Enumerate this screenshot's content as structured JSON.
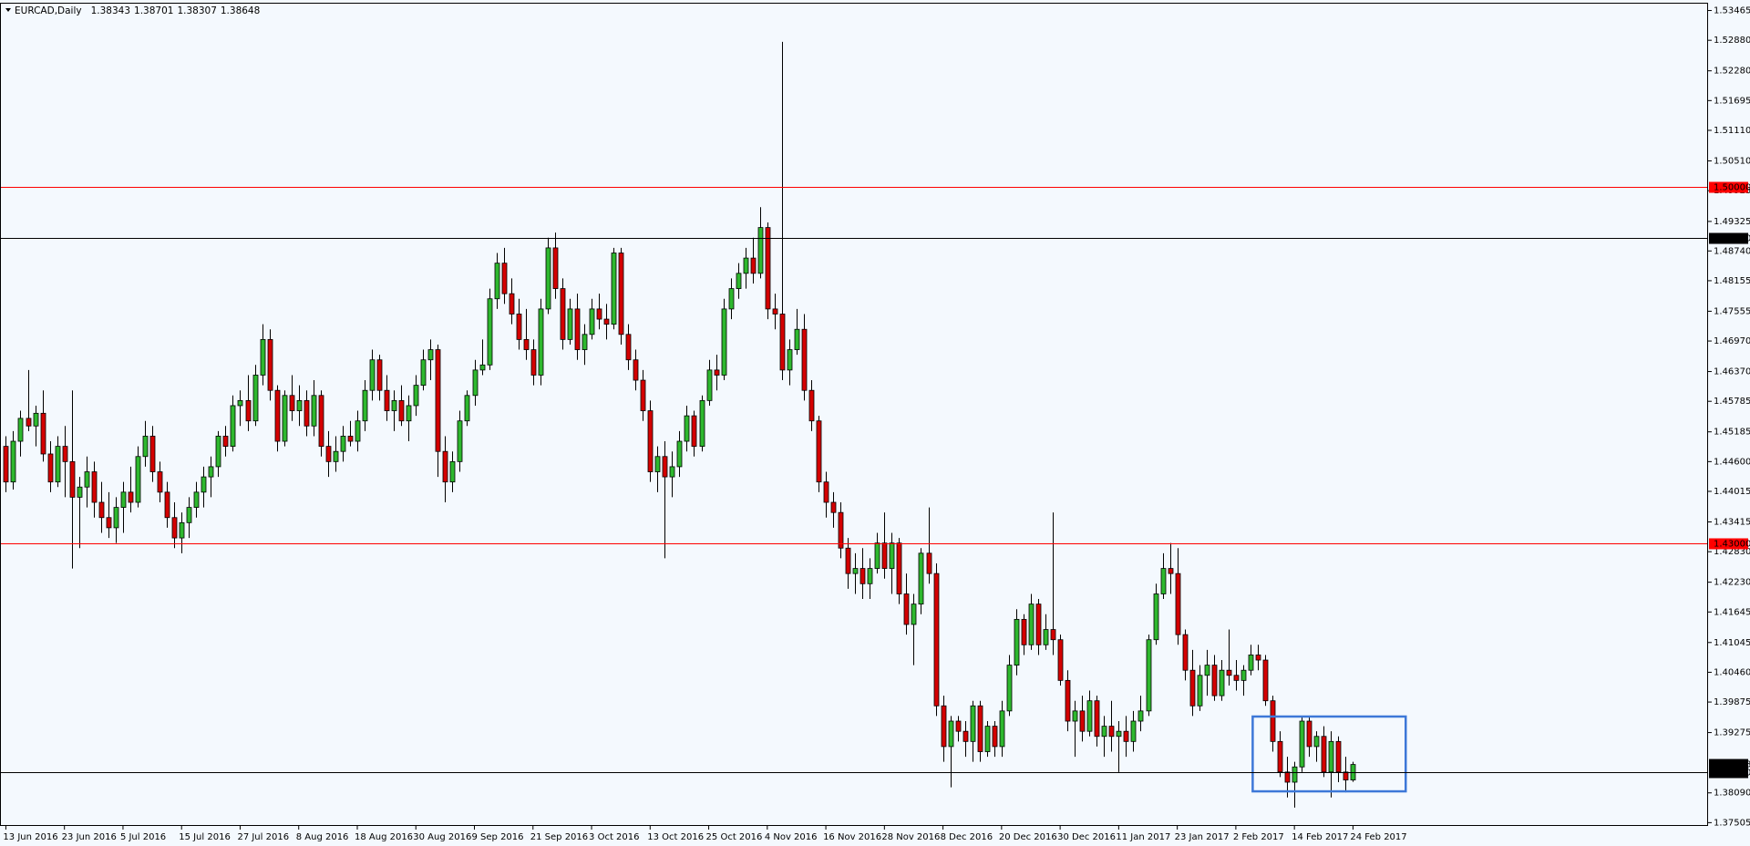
{
  "header": {
    "symbol": "EURCAD,Daily",
    "open": "1.38343",
    "high": "1.38701",
    "low": "1.38307",
    "close": "1.38648"
  },
  "chart_data": {
    "type": "candlestick",
    "up_color": "#2eb82e",
    "down_color": "#d40000",
    "wick_color": "#000000",
    "xlim": [
      -0.8,
      232.5
    ],
    "ylim": [
      1.3744,
      1.536
    ],
    "xticks": [
      {
        "value": 0,
        "label": "13 Jun 2016"
      },
      {
        "value": 8,
        "label": "23 Jun 2016"
      },
      {
        "value": 16,
        "label": "5 Jul 2016"
      },
      {
        "value": 24,
        "label": "15 Jul 2016"
      },
      {
        "value": 32,
        "label": "27 Jul 2016"
      },
      {
        "value": 40,
        "label": "8 Aug 2016"
      },
      {
        "value": 48,
        "label": "18 Aug 2016"
      },
      {
        "value": 56,
        "label": "30 Aug 2016"
      },
      {
        "value": 64,
        "label": "9 Sep 2016"
      },
      {
        "value": 72,
        "label": "21 Sep 2016"
      },
      {
        "value": 80,
        "label": "3 Oct 2016"
      },
      {
        "value": 88,
        "label": "13 Oct 2016"
      },
      {
        "value": 96,
        "label": "25 Oct 2016"
      },
      {
        "value": 104,
        "label": "4 Nov 2016"
      },
      {
        "value": 112,
        "label": "16 Nov 2016"
      },
      {
        "value": 120,
        "label": "28 Nov 2016"
      },
      {
        "value": 128,
        "label": "8 Dec 2016"
      },
      {
        "value": 136,
        "label": "20 Dec 2016"
      },
      {
        "value": 144,
        "label": "30 Dec 2016"
      },
      {
        "value": 152,
        "label": "11 Jan 2017"
      },
      {
        "value": 160,
        "label": "23 Jan 2017"
      },
      {
        "value": 168,
        "label": "2 Feb 2017"
      },
      {
        "value": 176,
        "label": "14 Feb 2017"
      },
      {
        "value": 184,
        "label": "24 Feb 2017"
      }
    ],
    "yticks": [
      {
        "value": 1.53465,
        "label": "1.53465"
      },
      {
        "value": 1.5288,
        "label": "1.52880"
      },
      {
        "value": 1.5228,
        "label": "1.52280"
      },
      {
        "value": 1.51695,
        "label": "1.51695"
      },
      {
        "value": 1.5111,
        "label": "1.51110"
      },
      {
        "value": 1.5051,
        "label": "1.50510"
      },
      {
        "value": 1.49925,
        "label": "1.49925"
      },
      {
        "value": 1.4932,
        "label": "1.49325"
      },
      {
        "value": 1.4874,
        "label": "1.48740"
      },
      {
        "value": 1.48155,
        "label": "1.48155"
      },
      {
        "value": 1.47555,
        "label": "1.47555"
      },
      {
        "value": 1.4697,
        "label": "1.46970"
      },
      {
        "value": 1.4637,
        "label": "1.46370"
      },
      {
        "value": 1.45785,
        "label": "1.45785"
      },
      {
        "value": 1.45185,
        "label": "1.45185"
      },
      {
        "value": 1.446,
        "label": "1.44600"
      },
      {
        "value": 1.44015,
        "label": "1.44015"
      },
      {
        "value": 1.43415,
        "label": "1.43415"
      },
      {
        "value": 1.4283,
        "label": "1.42830"
      },
      {
        "value": 1.4223,
        "label": "1.42230"
      },
      {
        "value": 1.41645,
        "label": "1.41645"
      },
      {
        "value": 1.41045,
        "label": "1.41045"
      },
      {
        "value": 1.4046,
        "label": "1.40460"
      },
      {
        "value": 1.39875,
        "label": "1.39875"
      },
      {
        "value": 1.39275,
        "label": "1.39275"
      },
      {
        "value": 1.3809,
        "label": "1.38090"
      },
      {
        "value": 1.37505,
        "label": "1.37505"
      }
    ],
    "hlines": [
      {
        "value": 1.5,
        "label": "1.50000",
        "color": "#ff0000"
      },
      {
        "value": 1.49,
        "label": "1.49000",
        "color": "#000000"
      },
      {
        "value": 1.43,
        "label": "1.43000",
        "color": "#ff0000"
      },
      {
        "value": 1.385,
        "label": "1.38500",
        "color": "#000000"
      }
    ],
    "current_price": {
      "value": 1.38648,
      "label": "1.38648"
    },
    "rectangle": {
      "color": "#3d78d8",
      "xlim": [
        170.3,
        191.2
      ],
      "ylim": [
        1.3812,
        1.3959
      ]
    },
    "open": [
      1.449,
      1.442,
      1.45,
      1.4545,
      1.453,
      1.4555,
      1.4475,
      1.442,
      1.449,
      1.446,
      1.439,
      1.441,
      1.444,
      1.438,
      1.435,
      1.433,
      1.437,
      1.44,
      1.438,
      1.447,
      1.451,
      1.444,
      1.44,
      1.435,
      1.431,
      1.434,
      1.437,
      1.44,
      1.443,
      1.445,
      1.451,
      1.449,
      1.457,
      1.458,
      1.454,
      1.463,
      1.47,
      1.46,
      1.45,
      1.459,
      1.456,
      1.458,
      1.453,
      1.459,
      1.449,
      1.446,
      1.448,
      1.451,
      1.45,
      1.454,
      1.46,
      1.466,
      1.46,
      1.456,
      1.458,
      1.454,
      1.457,
      1.461,
      1.466,
      1.468,
      1.448,
      1.442,
      1.446,
      1.454,
      1.459,
      1.464,
      1.465,
      1.478,
      1.485,
      1.479,
      1.475,
      1.47,
      1.468,
      1.463,
      1.476,
      1.488,
      1.48,
      1.47,
      1.476,
      1.468,
      1.471,
      1.476,
      1.474,
      1.473,
      1.487,
      1.471,
      1.466,
      1.462,
      1.456,
      1.444,
      1.447,
      1.443,
      1.445,
      1.45,
      1.455,
      1.449,
      1.458,
      1.464,
      1.463,
      1.476,
      1.48,
      1.483,
      1.486,
      1.483,
      1.492,
      1.476,
      1.475,
      1.464,
      1.468,
      1.472,
      1.46,
      1.454,
      1.442,
      1.438,
      1.436,
      1.429,
      1.424,
      1.425,
      1.422,
      1.425,
      1.43,
      1.425,
      1.43,
      1.42,
      1.414,
      1.418,
      1.428,
      1.424,
      1.398,
      1.39,
      1.395,
      1.393,
      1.391,
      1.398,
      1.389,
      1.394,
      1.39,
      1.397,
      1.406,
      1.415,
      1.41,
      1.418,
      1.41,
      1.413,
      1.411,
      1.403,
      1.395,
      1.397,
      1.393,
      1.399,
      1.392,
      1.394,
      1.392,
      1.393,
      1.391,
      1.395,
      1.397,
      1.411,
      1.42,
      1.425,
      1.424,
      1.412,
      1.405,
      1.398,
      1.404,
      1.406,
      1.4,
      1.405,
      1.404,
      1.403,
      1.405,
      1.408,
      1.407,
      1.399,
      1.391,
      1.385,
      1.383,
      1.386,
      1.395,
      1.39,
      1.392,
      1.385,
      1.391,
      1.385,
      1.38343
    ],
    "high": [
      1.451,
      1.452,
      1.456,
      1.464,
      1.457,
      1.46,
      1.45,
      1.451,
      1.453,
      1.46,
      1.443,
      1.447,
      1.446,
      1.442,
      1.44,
      1.439,
      1.442,
      1.445,
      1.449,
      1.454,
      1.453,
      1.446,
      1.442,
      1.438,
      1.436,
      1.439,
      1.442,
      1.445,
      1.447,
      1.452,
      1.453,
      1.459,
      1.46,
      1.463,
      1.465,
      1.473,
      1.472,
      1.461,
      1.46,
      1.463,
      1.461,
      1.46,
      1.462,
      1.46,
      1.452,
      1.451,
      1.453,
      1.454,
      1.456,
      1.462,
      1.468,
      1.467,
      1.463,
      1.46,
      1.461,
      1.459,
      1.463,
      1.468,
      1.47,
      1.469,
      1.451,
      1.448,
      1.456,
      1.46,
      1.466,
      1.47,
      1.48,
      1.487,
      1.488,
      1.482,
      1.478,
      1.476,
      1.47,
      1.478,
      1.49,
      1.491,
      1.482,
      1.478,
      1.479,
      1.473,
      1.478,
      1.479,
      1.477,
      1.488,
      1.488,
      1.473,
      1.468,
      1.464,
      1.458,
      1.449,
      1.45,
      1.448,
      1.452,
      1.457,
      1.456,
      1.459,
      1.466,
      1.467,
      1.478,
      1.482,
      1.485,
      1.488,
      1.49,
      1.496,
      1.493,
      1.479,
      1.5285,
      1.47,
      1.476,
      1.475,
      1.462,
      1.455,
      1.444,
      1.44,
      1.438,
      1.431,
      1.428,
      1.429,
      1.427,
      1.432,
      1.436,
      1.432,
      1.431,
      1.424,
      1.42,
      1.429,
      1.437,
      1.426,
      1.4,
      1.396,
      1.396,
      1.395,
      1.399,
      1.399,
      1.395,
      1.395,
      1.399,
      1.408,
      1.417,
      1.416,
      1.42,
      1.419,
      1.416,
      1.436,
      1.412,
      1.405,
      1.399,
      1.4,
      1.401,
      1.4,
      1.396,
      1.399,
      1.395,
      1.396,
      1.397,
      1.4,
      1.412,
      1.422,
      1.428,
      1.43,
      1.429,
      1.413,
      1.409,
      1.406,
      1.409,
      1.408,
      1.407,
      1.413,
      1.407,
      1.406,
      1.41,
      1.41,
      1.408,
      1.4,
      1.393,
      1.388,
      1.387,
      1.396,
      1.396,
      1.393,
      1.394,
      1.393,
      1.392,
      1.388,
      1.38701
    ],
    "low": [
      1.44,
      1.4405,
      1.447,
      1.452,
      1.449,
      1.446,
      1.44,
      1.441,
      1.439,
      1.425,
      1.429,
      1.437,
      1.435,
      1.432,
      1.431,
      1.43,
      1.432,
      1.436,
      1.437,
      1.445,
      1.442,
      1.438,
      1.433,
      1.429,
      1.428,
      1.431,
      1.435,
      1.437,
      1.439,
      1.443,
      1.447,
      1.448,
      1.453,
      1.452,
      1.453,
      1.461,
      1.458,
      1.448,
      1.449,
      1.454,
      1.453,
      1.451,
      1.451,
      1.447,
      1.443,
      1.444,
      1.446,
      1.449,
      1.448,
      1.452,
      1.458,
      1.458,
      1.454,
      1.452,
      1.453,
      1.45,
      1.455,
      1.46,
      1.462,
      1.443,
      1.438,
      1.44,
      1.444,
      1.453,
      1.457,
      1.463,
      1.464,
      1.476,
      1.477,
      1.473,
      1.468,
      1.466,
      1.461,
      1.461,
      1.475,
      1.478,
      1.468,
      1.469,
      1.466,
      1.465,
      1.47,
      1.472,
      1.47,
      1.472,
      1.469,
      1.464,
      1.46,
      1.454,
      1.442,
      1.44,
      1.427,
      1.439,
      1.443,
      1.448,
      1.447,
      1.448,
      1.457,
      1.46,
      1.462,
      1.474,
      1.478,
      1.48,
      1.481,
      1.482,
      1.474,
      1.472,
      1.462,
      1.461,
      1.467,
      1.458,
      1.452,
      1.44,
      1.435,
      1.433,
      1.427,
      1.421,
      1.42,
      1.419,
      1.419,
      1.424,
      1.423,
      1.42,
      1.418,
      1.412,
      1.406,
      1.416,
      1.422,
      1.396,
      1.387,
      1.382,
      1.391,
      1.388,
      1.387,
      1.387,
      1.388,
      1.388,
      1.388,
      1.396,
      1.404,
      1.408,
      1.409,
      1.408,
      1.409,
      1.408,
      1.402,
      1.393,
      1.388,
      1.391,
      1.392,
      1.39,
      1.388,
      1.389,
      1.385,
      1.388,
      1.389,
      1.393,
      1.396,
      1.41,
      1.419,
      1.42,
      1.41,
      1.403,
      1.396,
      1.397,
      1.4,
      1.399,
      1.399,
      1.402,
      1.401,
      1.4,
      1.404,
      1.405,
      1.398,
      1.389,
      1.384,
      1.38,
      1.378,
      1.385,
      1.388,
      1.387,
      1.384,
      1.38,
      1.383,
      1.381,
      1.38307
    ],
    "close": [
      1.442,
      1.45,
      1.4545,
      1.453,
      1.4555,
      1.4475,
      1.442,
      1.449,
      1.446,
      1.439,
      1.441,
      1.444,
      1.438,
      1.435,
      1.433,
      1.437,
      1.44,
      1.438,
      1.447,
      1.451,
      1.444,
      1.44,
      1.435,
      1.431,
      1.434,
      1.437,
      1.44,
      1.443,
      1.445,
      1.451,
      1.449,
      1.457,
      1.458,
      1.454,
      1.463,
      1.47,
      1.46,
      1.45,
      1.459,
      1.456,
      1.458,
      1.453,
      1.459,
      1.449,
      1.446,
      1.448,
      1.451,
      1.45,
      1.454,
      1.46,
      1.466,
      1.46,
      1.456,
      1.458,
      1.454,
      1.457,
      1.461,
      1.466,
      1.468,
      1.448,
      1.442,
      1.446,
      1.454,
      1.459,
      1.464,
      1.465,
      1.478,
      1.485,
      1.479,
      1.475,
      1.47,
      1.468,
      1.463,
      1.476,
      1.488,
      1.48,
      1.47,
      1.476,
      1.468,
      1.471,
      1.476,
      1.474,
      1.473,
      1.487,
      1.471,
      1.466,
      1.462,
      1.456,
      1.444,
      1.447,
      1.443,
      1.445,
      1.45,
      1.455,
      1.449,
      1.458,
      1.464,
      1.463,
      1.476,
      1.48,
      1.483,
      1.486,
      1.483,
      1.492,
      1.476,
      1.475,
      1.464,
      1.468,
      1.472,
      1.46,
      1.454,
      1.442,
      1.438,
      1.436,
      1.429,
      1.424,
      1.425,
      1.422,
      1.425,
      1.43,
      1.425,
      1.43,
      1.42,
      1.414,
      1.418,
      1.428,
      1.424,
      1.398,
      1.39,
      1.395,
      1.393,
      1.391,
      1.398,
      1.389,
      1.394,
      1.39,
      1.397,
      1.406,
      1.415,
      1.41,
      1.418,
      1.41,
      1.413,
      1.411,
      1.403,
      1.395,
      1.397,
      1.393,
      1.399,
      1.392,
      1.394,
      1.392,
      1.393,
      1.391,
      1.395,
      1.397,
      1.411,
      1.42,
      1.425,
      1.424,
      1.412,
      1.405,
      1.398,
      1.404,
      1.406,
      1.4,
      1.405,
      1.404,
      1.403,
      1.405,
      1.408,
      1.407,
      1.399,
      1.391,
      1.385,
      1.383,
      1.386,
      1.395,
      1.39,
      1.392,
      1.385,
      1.391,
      1.385,
      1.38343,
      1.38648
    ]
  }
}
